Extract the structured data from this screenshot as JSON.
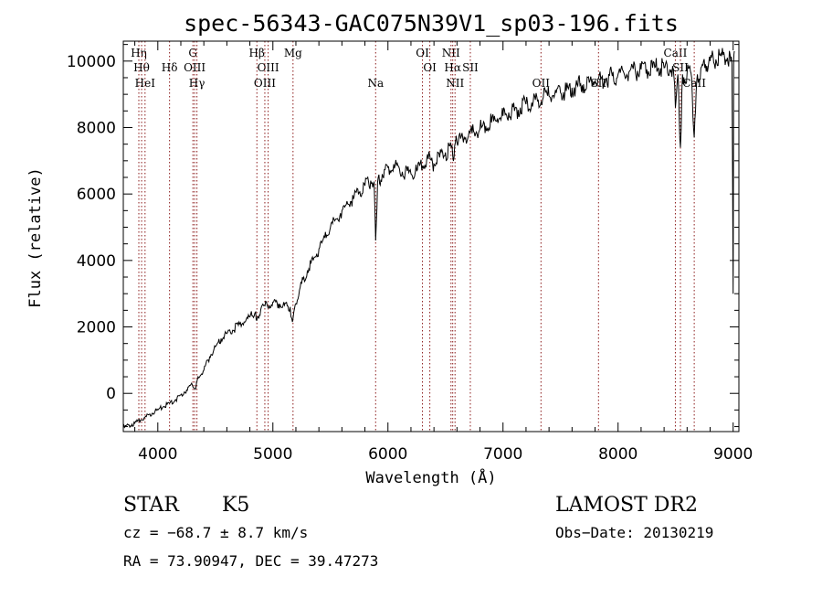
{
  "chart_data": {
    "type": "line",
    "title": "spec-56343-GAC075N39V1_sp03-196.fits",
    "xlabel": "Wavelength (Å)",
    "ylabel": "Flux (relative)",
    "xlim": [
      3700,
      9050
    ],
    "ylim": [
      -1150,
      10600
    ],
    "xticks": [
      4000,
      5000,
      6000,
      7000,
      8000,
      9000
    ],
    "yticks": [
      0,
      2000,
      4000,
      6000,
      8000,
      10000
    ],
    "series": [
      {
        "x": [
          3700,
          3750,
          3800,
          3850,
          3900,
          3950,
          4000,
          4050,
          4100,
          4150,
          4200,
          4250,
          4300,
          4330,
          4350,
          4400,
          4450,
          4500,
          4550,
          4600,
          4650,
          4700,
          4750,
          4800,
          4850,
          4860,
          4900,
          4950,
          5000,
          5050,
          5100,
          5150,
          5170,
          5200,
          5250,
          5300,
          5350,
          5400,
          5450,
          5500,
          5550,
          5600,
          5650,
          5700,
          5750,
          5800,
          5850,
          5880,
          5893,
          5910,
          5950,
          6000,
          6050,
          6100,
          6150,
          6200,
          6250,
          6300,
          6350,
          6400,
          6450,
          6500,
          6550,
          6563,
          6580,
          6600,
          6650,
          6700,
          6750,
          6800,
          6850,
          6900,
          6950,
          7000,
          7050,
          7100,
          7150,
          7200,
          7250,
          7300,
          7350,
          7400,
          7450,
          7500,
          7550,
          7600,
          7650,
          7700,
          7750,
          7800,
          7850,
          7900,
          7950,
          8000,
          8050,
          8100,
          8150,
          8200,
          8250,
          8300,
          8350,
          8400,
          8450,
          8480,
          8498,
          8520,
          8542,
          8560,
          8600,
          8640,
          8662,
          8690,
          8720,
          8760,
          8800,
          8850,
          8900,
          8950,
          8990,
          9000,
          9005,
          9010
        ],
        "y": [
          -1050,
          -950,
          -900,
          -800,
          -700,
          -600,
          -500,
          -400,
          -300,
          -200,
          -50,
          100,
          250,
          150,
          500,
          700,
          1100,
          1400,
          1650,
          1800,
          1900,
          2050,
          2150,
          2300,
          2450,
          2200,
          2600,
          2650,
          2750,
          2700,
          2650,
          2600,
          2150,
          2700,
          3300,
          3700,
          4000,
          4350,
          4700,
          5000,
          5250,
          5500,
          5700,
          5850,
          6050,
          6250,
          6400,
          6350,
          4600,
          6350,
          6600,
          6800,
          6900,
          6750,
          6650,
          6600,
          6700,
          6850,
          7050,
          6900,
          7100,
          7250,
          7400,
          7150,
          7450,
          7550,
          7700,
          7750,
          7850,
          7950,
          8050,
          8150,
          8250,
          8350,
          8450,
          8500,
          8600,
          8700,
          8750,
          8800,
          8900,
          8950,
          9000,
          9050,
          9100,
          9200,
          9250,
          9300,
          9350,
          9400,
          9450,
          9500,
          9550,
          9600,
          9650,
          9700,
          9700,
          9750,
          9750,
          9800,
          9800,
          9800,
          9750,
          9750,
          8600,
          9600,
          7400,
          9600,
          9650,
          9500,
          7700,
          9600,
          9800,
          9900,
          10000,
          10050,
          10150,
          10100,
          9900,
          3000,
          10000,
          10300
        ]
      }
    ],
    "lines": [
      {
        "name": "Hη",
        "wave": 3835,
        "row": 1
      },
      {
        "name": "Hθ",
        "wave": 3859,
        "row": 2
      },
      {
        "name": "HeI",
        "wave": 3889,
        "row": 3
      },
      {
        "name": "Hδ",
        "wave": 4102,
        "row": 2
      },
      {
        "name": "G",
        "wave": 4305,
        "row": 1
      },
      {
        "name": "OIII",
        "wave": 4320,
        "row": 2
      },
      {
        "name": "Hγ",
        "wave": 4340,
        "row": 3
      },
      {
        "name": "Hβ",
        "wave": 4861,
        "row": 1
      },
      {
        "name": "OIII",
        "wave": 4959,
        "row": 2
      },
      {
        "name": "OIII",
        "wave": 4930,
        "row": 3
      },
      {
        "name": "Mg",
        "wave": 5175,
        "row": 1
      },
      {
        "name": "Na",
        "wave": 5893,
        "row": 3
      },
      {
        "name": "OI",
        "wave": 6300,
        "row": 1
      },
      {
        "name": "OI",
        "wave": 6364,
        "row": 2
      },
      {
        "name": "NII",
        "wave": 6548,
        "row": 1
      },
      {
        "name": "Hα",
        "wave": 6563,
        "row": 2
      },
      {
        "name": "NII",
        "wave": 6583,
        "row": 3
      },
      {
        "name": "SII",
        "wave": 6716,
        "row": 2
      },
      {
        "name": "OII",
        "wave": 7330,
        "row": 3
      },
      {
        "name": "SII",
        "wave": 7830,
        "row": 3
      },
      {
        "name": "CaII",
        "wave": 8498,
        "row": 1
      },
      {
        "name": "SII",
        "wave": 8542,
        "row": 2
      },
      {
        "name": "CaII",
        "wave": 8662,
        "row": 3
      }
    ]
  },
  "footer": {
    "object": "STAR",
    "subclass": "K5",
    "cz": "cz = −68.7 ± 8.7 km/s",
    "coords": "RA =  73.90947, DEC =  39.47273",
    "survey": "LAMOST DR2",
    "obs_date": "Obs−Date: 20130219"
  }
}
